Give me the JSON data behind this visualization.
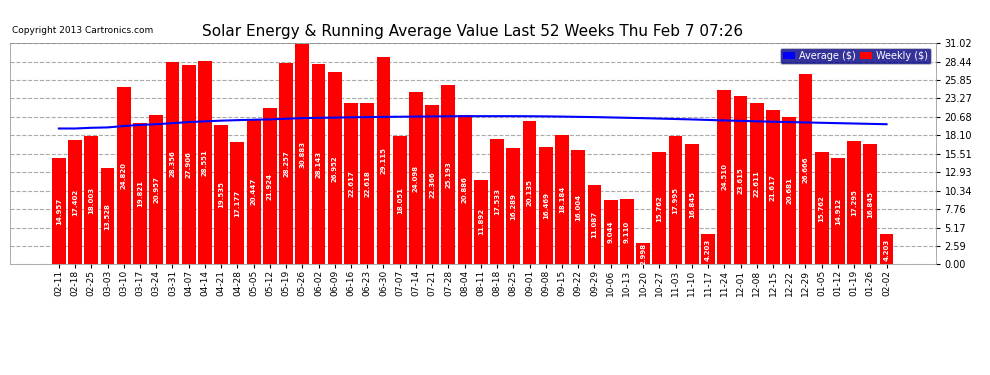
{
  "title": "Solar Energy & Running Average Value Last 52 Weeks Thu Feb 7 07:26",
  "copyright": "Copyright 2013 Cartronics.com",
  "bar_color": "#ff0000",
  "avg_line_color": "#0000ff",
  "background_color": "#ffffff",
  "grid_color": "#aaaaaa",
  "categories": [
    "02-11",
    "02-18",
    "02-25",
    "03-03",
    "03-10",
    "03-17",
    "03-24",
    "03-31",
    "04-07",
    "04-14",
    "04-21",
    "04-28",
    "05-05",
    "05-12",
    "05-19",
    "05-26",
    "06-02",
    "06-09",
    "06-16",
    "06-23",
    "06-30",
    "07-07",
    "07-14",
    "07-21",
    "07-28",
    "08-04",
    "08-11",
    "08-18",
    "08-25",
    "09-01",
    "09-08",
    "09-15",
    "09-22",
    "09-29",
    "10-06",
    "10-13",
    "10-20",
    "10-27",
    "11-03",
    "11-10",
    "11-17",
    "11-24",
    "12-01",
    "12-08",
    "12-15",
    "12-22",
    "12-29",
    "01-05",
    "01-12",
    "01-19",
    "01-26",
    "02-02"
  ],
  "weekly_values": [
    14.957,
    17.402,
    18.003,
    13.528,
    24.82,
    19.821,
    20.957,
    28.356,
    27.906,
    28.551,
    19.535,
    17.177,
    20.447,
    21.924,
    28.257,
    30.883,
    28.143,
    26.952,
    22.617,
    22.618,
    29.115,
    18.051,
    24.098,
    22.366,
    25.193,
    20.886,
    11.892,
    17.533,
    16.289,
    20.135,
    16.469,
    18.184,
    16.004,
    11.087,
    9.044,
    9.11,
    2.998,
    15.762,
    17.995,
    16.845,
    4.203,
    24.51,
    23.615,
    22.611,
    21.617,
    20.681,
    26.666,
    15.762,
    14.912,
    17.295,
    16.845,
    4.203
  ],
  "avg_values": [
    19.05,
    19.05,
    19.15,
    19.2,
    19.4,
    19.55,
    19.65,
    19.8,
    19.95,
    20.05,
    20.15,
    20.22,
    20.28,
    20.33,
    20.42,
    20.5,
    20.55,
    20.58,
    20.62,
    20.65,
    20.68,
    20.7,
    20.72,
    20.74,
    20.76,
    20.78,
    20.78,
    20.78,
    20.78,
    20.77,
    20.75,
    20.72,
    20.68,
    20.65,
    20.6,
    20.55,
    20.5,
    20.44,
    20.38,
    20.32,
    20.25,
    20.18,
    20.12,
    20.06,
    20.0,
    19.95,
    19.9,
    19.85,
    19.8,
    19.75,
    19.7,
    19.65
  ],
  "ylim_min": 0.0,
  "ylim_max": 31.02,
  "yticks": [
    0.0,
    2.59,
    5.17,
    7.76,
    10.34,
    12.93,
    15.51,
    18.1,
    20.68,
    23.27,
    25.85,
    28.44,
    31.02
  ],
  "legend_avg_label": "Average ($)",
  "legend_weekly_label": "Weekly ($)",
  "legend_bg_color": "#000080",
  "legend_text_color": "#ffffff",
  "title_fontsize": 11,
  "bar_label_fontsize": 5,
  "axis_fontsize": 7,
  "xtick_fontsize": 6.5
}
